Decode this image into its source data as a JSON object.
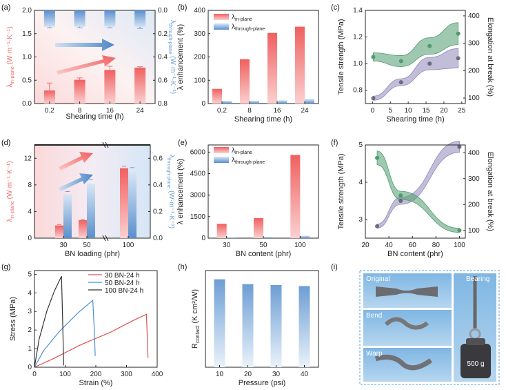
{
  "panels": {
    "a": "(a)",
    "b": "(b)",
    "c": "(c)",
    "d": "(d)",
    "e": "(e)",
    "f": "(f)",
    "g": "(g)",
    "h": "(h)",
    "i": "(i)"
  },
  "colors": {
    "red": "#f06b6b",
    "blue": "#6d9ed4",
    "purple": "#8f86b8",
    "green": "#4f9a6e",
    "dark": "#555566"
  },
  "photo": {
    "labels": [
      "Original",
      "Bend",
      "Warp",
      "Bearing"
    ],
    "weight_label": "500 g"
  },
  "chart_data": [
    {
      "id": "a",
      "type": "bar",
      "categories": [
        "0.2",
        "8",
        "16",
        "24"
      ],
      "xlabel": "Shearing time (h)",
      "ylabel": "λin-plane (W·m⁻¹·K⁻¹)",
      "ylabel_main": "λ",
      "ylabel_sub": "in-plane",
      "ylabel_unit": " (W·m⁻¹·K⁻¹)",
      "ylim": [
        0,
        2.0
      ],
      "yticks": [
        "0.0",
        "0.5",
        "1.0",
        "1.5",
        "2.0"
      ],
      "y2label": "λthrough-plane (W·m⁻¹·K⁻¹)",
      "y2label_main": "λ",
      "y2label_sub": "through-plane",
      "y2label_unit": " (W·m⁻¹·K⁻¹)",
      "y2lim": [
        0.8,
        0.0
      ],
      "y2ticks": [
        "0.0",
        "0.2",
        "0.4",
        "0.6",
        "0.8"
      ],
      "series": [
        {
          "values": [
            0.28,
            0.51,
            0.72,
            0.77
          ],
          "errors": [
            0.16,
            0.04,
            0.08,
            0.02
          ],
          "axis": "left"
        },
        {
          "values": [
            0.14,
            0.14,
            0.14,
            0.14
          ],
          "errors": [
            0.01,
            0.01,
            0.01,
            0.015
          ],
          "axis": "right"
        }
      ]
    },
    {
      "id": "b",
      "type": "bar",
      "categories": [
        "0.2",
        "8",
        "16",
        "24"
      ],
      "xlabel": "Shearing time (h)",
      "ylabel": "λ enhancement (%)",
      "ylim": [
        0,
        400
      ],
      "yticks": [
        "0",
        "100",
        "200",
        "300",
        "400"
      ],
      "series": [
        {
          "name": "λin-plane",
          "name_main": "λ",
          "name_sub": "in-plane",
          "values": [
            63,
            190,
            303,
            330
          ]
        },
        {
          "name": "λthrough-plane",
          "name_main": "λ",
          "name_sub": "through-plane",
          "values": [
            12,
            12,
            14,
            20
          ]
        }
      ]
    },
    {
      "id": "c",
      "type": "scatter",
      "xlabel": "Shearing time (h)",
      "ylabel": "Tensile strength (MPa)",
      "y2label": "Elongation at break (%)",
      "xlim": [
        -2,
        26
      ],
      "xticks": [
        "0",
        "5",
        "10",
        "15",
        "20",
        "25"
      ],
      "ylim": [
        0.7,
        1.4
      ],
      "yticks": [
        "0.8",
        "1.0",
        "1.2",
        "1.4"
      ],
      "y2lim": [
        80,
        420
      ],
      "y2ticks": [
        "100",
        "200",
        "300",
        "400"
      ],
      "series": [
        {
          "x": [
            0.2,
            8,
            16,
            24
          ],
          "y": [
            0.74,
            0.86,
            1.0,
            1.04
          ],
          "axis": "left"
        },
        {
          "x": [
            0.2,
            8,
            16,
            24
          ],
          "y": [
            250,
            235,
            290,
            335
          ],
          "axis": "right"
        }
      ]
    },
    {
      "id": "d",
      "type": "bar",
      "categories": [
        "30",
        "50",
        "100"
      ],
      "xlabel": "BN loading (phr)",
      "ylabel": "λin-plane (W·m⁻¹·K⁻¹)",
      "ylabel_main": "λ",
      "ylabel_sub": "in-plane",
      "ylabel_unit": " (W·m⁻¹·K⁻¹)",
      "ylim": [
        0,
        14
      ],
      "yticks": [
        "0",
        "4",
        "8",
        "12"
      ],
      "y2label": "λthrough-plane (W·m⁻¹·K⁻¹)",
      "y2label_main": "λ",
      "y2label_sub": "through-plane",
      "y2label_unit": " (W·m⁻¹·K⁻¹)",
      "y2lim": [
        0,
        0.7
      ],
      "y2ticks": [
        "0.0",
        "0.2",
        "0.4",
        "0.6"
      ],
      "series": [
        {
          "values": [
            1.9,
            2.7,
            10.5
          ],
          "errors": [
            0.15,
            0.15,
            0.3
          ],
          "axis": "left"
        },
        {
          "values": [
            0.33,
            0.41,
            0.5
          ],
          "errors": [
            0.02,
            0.03,
            0.03
          ],
          "axis": "right"
        }
      ]
    },
    {
      "id": "e",
      "type": "bar",
      "categories": [
        "30",
        "50",
        "100"
      ],
      "xlabel": "BN content (phr)",
      "ylabel": "λ enhancement (%)",
      "ylim": [
        0,
        6500
      ],
      "yticks": [
        "0",
        "1500",
        "3000",
        "4500",
        "6000"
      ],
      "series": [
        {
          "name": "λin-plane",
          "name_main": "λ",
          "name_sub": "in-plane",
          "values": [
            1000,
            1400,
            5800
          ]
        },
        {
          "name": "λthrough-plane",
          "name_main": "λ",
          "name_sub": "through-plane",
          "values": [
            60,
            90,
            170
          ]
        }
      ]
    },
    {
      "id": "f",
      "type": "scatter",
      "xlabel": "BN content (phr)",
      "ylabel": "Tensile strength (MPa)",
      "y2label": "Elongation at break (%)",
      "xlim": [
        20,
        105
      ],
      "xticks": [
        "20",
        "40",
        "60",
        "80",
        "100"
      ],
      "ylim": [
        2.5,
        5.0
      ],
      "yticks": [
        "3",
        "4",
        "5"
      ],
      "y2lim": [
        70,
        430
      ],
      "y2ticks": [
        "100",
        "200",
        "300",
        "400"
      ],
      "series": [
        {
          "x": [
            30,
            50,
            100
          ],
          "y": [
            2.82,
            3.5,
            4.95
          ],
          "axis": "left"
        },
        {
          "x": [
            30,
            50,
            100
          ],
          "y": [
            380,
            235,
            100
          ],
          "axis": "right"
        }
      ]
    },
    {
      "id": "g",
      "type": "line",
      "xlabel": "Strain (%)",
      "ylabel": "Stress (MPa)",
      "xlim": [
        0,
        400
      ],
      "xticks": [
        "0",
        "100",
        "200",
        "300",
        "400"
      ],
      "ylim": [
        0,
        5.2
      ],
      "yticks": [
        "0",
        "1",
        "2",
        "3",
        "4",
        "5"
      ],
      "series": [
        {
          "name": "30 BN-24 h",
          "color": "#e05050",
          "x": [
            0,
            60,
            150,
            250,
            320,
            365,
            368,
            370
          ],
          "y": [
            0,
            0.45,
            1.2,
            1.9,
            2.5,
            2.85,
            1.5,
            0.5
          ]
        },
        {
          "name": "50 BN-24 h",
          "color": "#4a8fd0",
          "x": [
            0,
            30,
            80,
            140,
            190,
            195,
            198
          ],
          "y": [
            0,
            0.9,
            1.9,
            2.9,
            3.6,
            2.0,
            0.6
          ]
        },
        {
          "name": "100 BN-24 h",
          "color": "#333333",
          "x": [
            0,
            15,
            40,
            65,
            88,
            92,
            95
          ],
          "y": [
            0,
            1.5,
            3.0,
            4.1,
            4.9,
            2.5,
            0.1
          ]
        }
      ]
    },
    {
      "id": "h",
      "type": "bar",
      "categories": [
        "10",
        "20",
        "30",
        "40"
      ],
      "xlabel": "Pressure (psi)",
      "ylabel": "Rcontact (K cm²/W)",
      "ylabel_main": "R",
      "ylabel_sub": "contact",
      "ylabel_unit": " (K cm²/W)",
      "ylim": [
        0,
        1.0
      ],
      "values": [
        0.91,
        0.86,
        0.85,
        0.84
      ]
    }
  ]
}
